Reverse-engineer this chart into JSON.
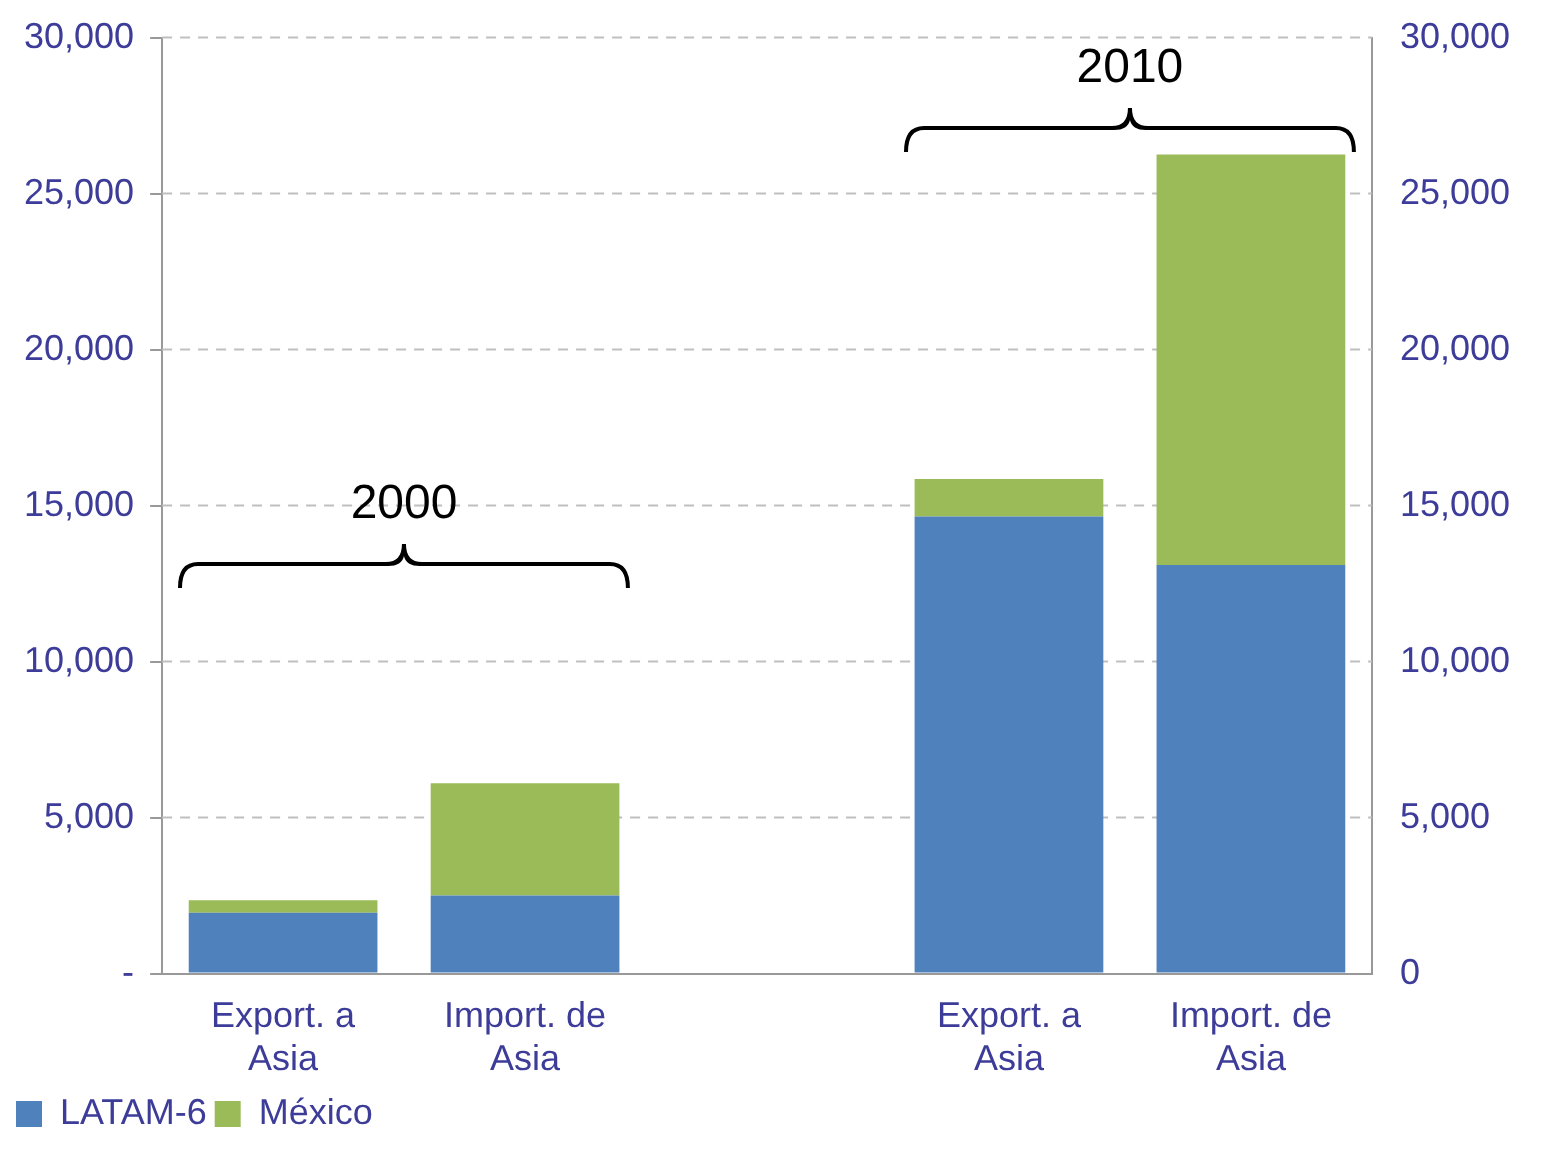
{
  "chart_data": {
    "type": "bar",
    "stacked": true,
    "categories": [
      "Export. a Asia",
      "Import. de Asia",
      null,
      "Export. a Asia",
      "Import. de Asia"
    ],
    "series": [
      {
        "name": "LATAM-6",
        "color": "#4f81bd",
        "values": [
          1950,
          2500,
          null,
          14650,
          13100
        ]
      },
      {
        "name": "México",
        "color": "#9bbb59",
        "values": [
          400,
          3600,
          null,
          1200,
          13150
        ]
      }
    ],
    "ylim": [
      0,
      30000
    ],
    "yticks": [
      {
        "value": 0,
        "label": "-"
      },
      {
        "value": 5000,
        "label": "5,000"
      },
      {
        "value": 10000,
        "label": "10,000"
      },
      {
        "value": 15000,
        "label": "15,000"
      },
      {
        "value": 20000,
        "label": "20,000"
      },
      {
        "value": 25000,
        "label": "25,000"
      },
      {
        "value": 30000,
        "label": "30,000"
      }
    ],
    "y2lim": [
      0,
      30000
    ],
    "y2ticks": [
      0,
      {
        "value": 5000,
        "label": "5,000"
      },
      {
        "value": 10000,
        "label": "10,000"
      },
      {
        "value": 15000,
        "label": "15,000"
      },
      {
        "value": 20000,
        "label": "20,000"
      },
      {
        "value": 25000,
        "label": "25,000"
      },
      {
        "value": 30000,
        "label": "30,000"
      }
    ],
    "annotations": [
      "2000",
      "2010"
    ],
    "grid": "y",
    "legend": "bottom left"
  }
}
